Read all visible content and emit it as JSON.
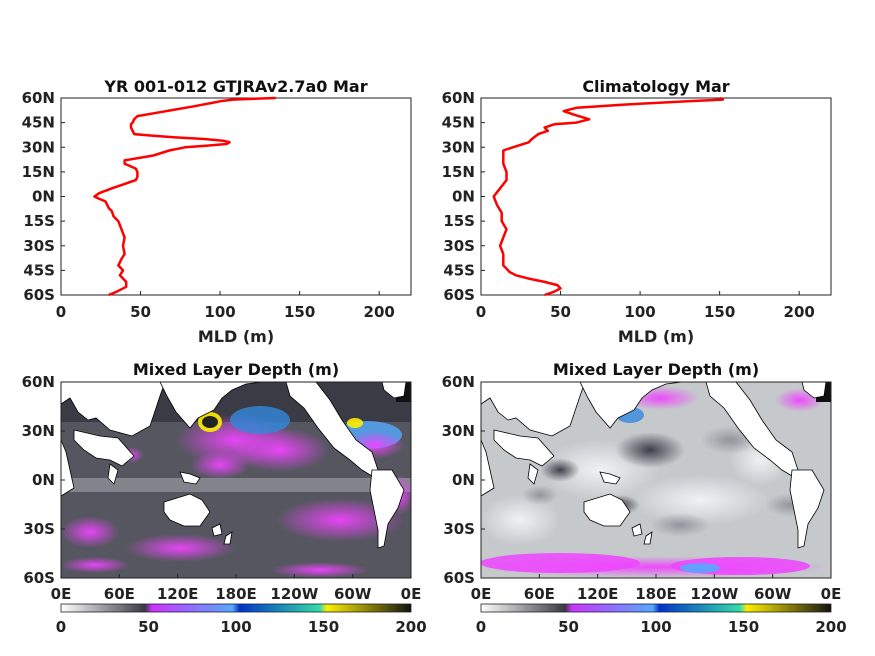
{
  "chart_data": [
    {
      "type": "line",
      "title": "YR 001-012 GTJRAv2.7a0 Mar",
      "xlabel": "MLD (m)",
      "ylabel": "",
      "xlim": [
        0,
        220
      ],
      "ylim": [
        -60,
        60
      ],
      "x_ticks": [
        "0",
        "50",
        "100",
        "150",
        "200"
      ],
      "y_ticks": [
        "60N",
        "45N",
        "30N",
        "15N",
        "0N",
        "15S",
        "30S",
        "45S",
        "60S"
      ],
      "line_color": "#ff0000",
      "series": [
        {
          "lat": [
            -60,
            -58,
            -55,
            -52,
            -48,
            -45,
            -42,
            -38,
            -35,
            -30,
            -25,
            -20,
            -15,
            -12,
            -9,
            -7,
            -5,
            -3,
            -1,
            0,
            2,
            5,
            8,
            10,
            12,
            15,
            17,
            20,
            22,
            25,
            28,
            30,
            31,
            32,
            33,
            34,
            35,
            36,
            37,
            38,
            40,
            42,
            44,
            45,
            47,
            49,
            51,
            53,
            55,
            57,
            58,
            59,
            60
          ],
          "mld": [
            30,
            35,
            41,
            41,
            37,
            39,
            36,
            38,
            40,
            39,
            40,
            38,
            36,
            33,
            32,
            30,
            29,
            28,
            23,
            21,
            24,
            32,
            41,
            47,
            48,
            48,
            47,
            40,
            40,
            58,
            68,
            78,
            92,
            104,
            106,
            102,
            90,
            72,
            58,
            46,
            45,
            44,
            44,
            45,
            46,
            48,
            60,
            72,
            84,
            95,
            100,
            108,
            135
          ]
        }
      ]
    },
    {
      "type": "line",
      "title": "Climatology Mar",
      "xlabel": "MLD (m)",
      "ylabel": "",
      "xlim": [
        0,
        220
      ],
      "ylim": [
        -60,
        60
      ],
      "x_ticks": [
        "0",
        "50",
        "100",
        "150",
        "200"
      ],
      "y_ticks": [
        "60N",
        "45N",
        "30N",
        "15N",
        "0N",
        "15S",
        "30S",
        "45S",
        "60S"
      ],
      "line_color": "#ff0000",
      "series": [
        {
          "lat": [
            -60,
            -58,
            -56,
            -54,
            -52,
            -50,
            -48,
            -46,
            -44,
            -42,
            -40,
            -35,
            -30,
            -25,
            -20,
            -15,
            -10,
            -5,
            0,
            5,
            10,
            15,
            20,
            25,
            28,
            30,
            33,
            35,
            38,
            40,
            42,
            43,
            44,
            45,
            47,
            50,
            52,
            54,
            56,
            58,
            59,
            60
          ],
          "mld": [
            40,
            46,
            50,
            48,
            40,
            30,
            22,
            18,
            16,
            14,
            14,
            14,
            12,
            14,
            16,
            13,
            13,
            10,
            8,
            12,
            16,
            16,
            14,
            14,
            14,
            20,
            30,
            32,
            36,
            42,
            40,
            43,
            46,
            60,
            68,
            58,
            52,
            60,
            90,
            130,
            152,
            150
          ]
        }
      ]
    },
    {
      "type": "heatmap",
      "title": "Mixed Layer Depth (m)",
      "x_ticks": [
        "0E",
        "60E",
        "120E",
        "180E",
        "120W",
        "60W",
        "0E"
      ],
      "y_ticks": [
        "60N",
        "30N",
        "0N",
        "30S",
        "60S"
      ],
      "colorbar_ticks": [
        "0",
        "50",
        "100",
        "150",
        "200"
      ],
      "clim": [
        0,
        200
      ]
    },
    {
      "type": "heatmap",
      "title": "Mixed Layer Depth (m)",
      "x_ticks": [
        "0E",
        "60E",
        "120E",
        "180E",
        "120W",
        "60W",
        "0E"
      ],
      "y_ticks": [
        "60N",
        "30N",
        "0N",
        "30S",
        "60S"
      ],
      "colorbar_ticks": [
        "0",
        "50",
        "100",
        "150",
        "200"
      ],
      "clim": [
        0,
        200
      ]
    }
  ]
}
